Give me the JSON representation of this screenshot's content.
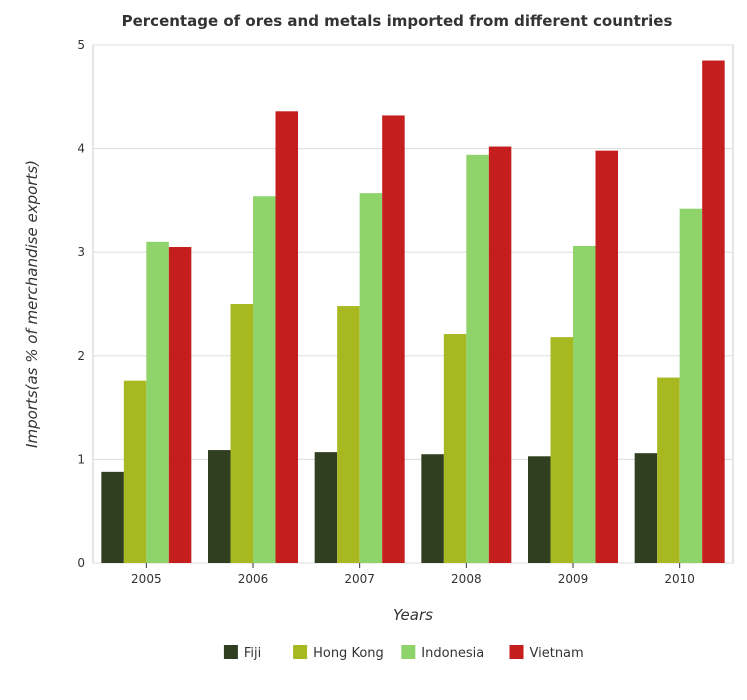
{
  "chart_data": {
    "type": "bar",
    "title": "Percentage of ores and metals imported from different countries",
    "xlabel": "Years",
    "ylabel": "Imports(as % of merchandise exports)",
    "categories": [
      "2005",
      "2006",
      "2007",
      "2008",
      "2009",
      "2010"
    ],
    "ylim": [
      0,
      5
    ],
    "yticks": [
      "0",
      "1",
      "2",
      "3",
      "4",
      "5"
    ],
    "grid": true,
    "legend_position": "bottom",
    "series": [
      {
        "name": "Fiji",
        "color": "#2f3f1f",
        "values": [
          0.88,
          1.09,
          1.07,
          1.05,
          1.03,
          1.06
        ]
      },
      {
        "name": "Hong Kong",
        "color": "#a8b820",
        "values": [
          1.76,
          2.5,
          2.48,
          2.21,
          2.18,
          1.79
        ]
      },
      {
        "name": "Indonesia",
        "color": "#8ed46a",
        "values": [
          3.1,
          3.54,
          3.57,
          3.94,
          3.06,
          3.42
        ]
      },
      {
        "name": "Vietnam",
        "color": "#c41e1e",
        "values": [
          3.05,
          4.36,
          4.32,
          4.02,
          3.98,
          4.85
        ]
      }
    ]
  }
}
